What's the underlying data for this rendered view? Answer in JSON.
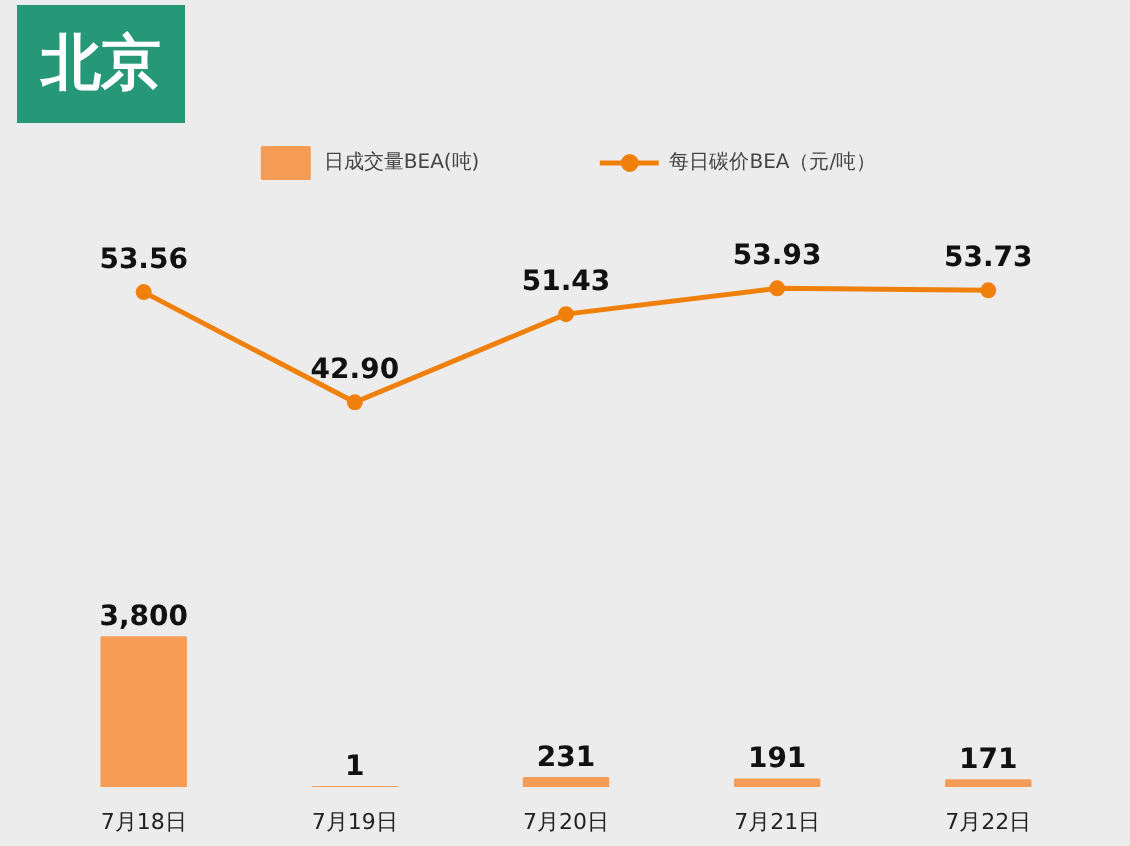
{
  "chart_data": [
    {
      "type": "line",
      "title": "北京",
      "categories": [
        null,
        null,
        null,
        null,
        null
      ],
      "series": [
        {
          "name": "每日碳价BEA（元/吨）",
          "color": "#f0800c",
          "values": [
            53.56,
            42.9,
            51.43,
            53.93,
            53.73
          ],
          "value_labels": [
            "53.56",
            "42.90",
            "51.43",
            "53.93",
            "53.73"
          ]
        }
      ],
      "tick_labels": false,
      "legend": "top",
      "marker": "circle",
      "line_style": "solid"
    },
    {
      "type": "bar",
      "categories": [
        "7月18日",
        "7月19日",
        "7月20日",
        "7月21日",
        "7月22日"
      ],
      "series": [
        {
          "name": "日成交量BEA(吨)",
          "color": "#f59d56",
          "values": [
            3800,
            1,
            231,
            191,
            171
          ],
          "value_labels": [
            "3,800",
            "1",
            "231",
            "191",
            "171"
          ]
        }
      ],
      "tick_labels": "x",
      "legend": "top"
    }
  ]
}
